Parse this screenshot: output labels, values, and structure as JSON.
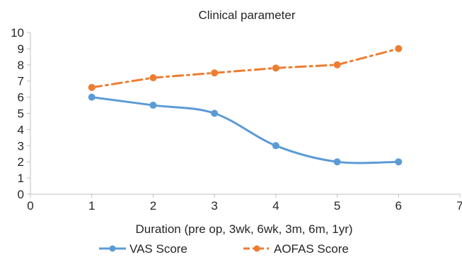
{
  "chart_data": {
    "type": "line",
    "title": "Clinical parameter",
    "xlabel": "Duration (pre op, 3wk, 6wk, 3m, 6m, 1yr)",
    "ylabel": "",
    "xlim": [
      0,
      7
    ],
    "ylim": [
      0,
      10
    ],
    "x_ticks": [
      0,
      1,
      2,
      3,
      4,
      5,
      6,
      7
    ],
    "y_ticks": [
      0,
      1,
      2,
      3,
      4,
      5,
      6,
      7,
      8,
      9,
      10
    ],
    "grid": false,
    "legend_position": "bottom",
    "series": [
      {
        "name": "VAS Score",
        "x": [
          1,
          2,
          3,
          4,
          5,
          6
        ],
        "values": [
          6,
          5.5,
          5,
          3,
          2,
          2
        ],
        "color": "#5B9BD5",
        "line_style": "solid",
        "smooth": true,
        "marker": "circle"
      },
      {
        "name": "AOFAS Score",
        "x": [
          1,
          2,
          3,
          4,
          5,
          6
        ],
        "values": [
          6.6,
          7.2,
          7.5,
          7.8,
          8,
          9
        ],
        "color": "#ED7D31",
        "line_style": "dash-dot",
        "smooth": false,
        "marker": "circle"
      }
    ]
  }
}
